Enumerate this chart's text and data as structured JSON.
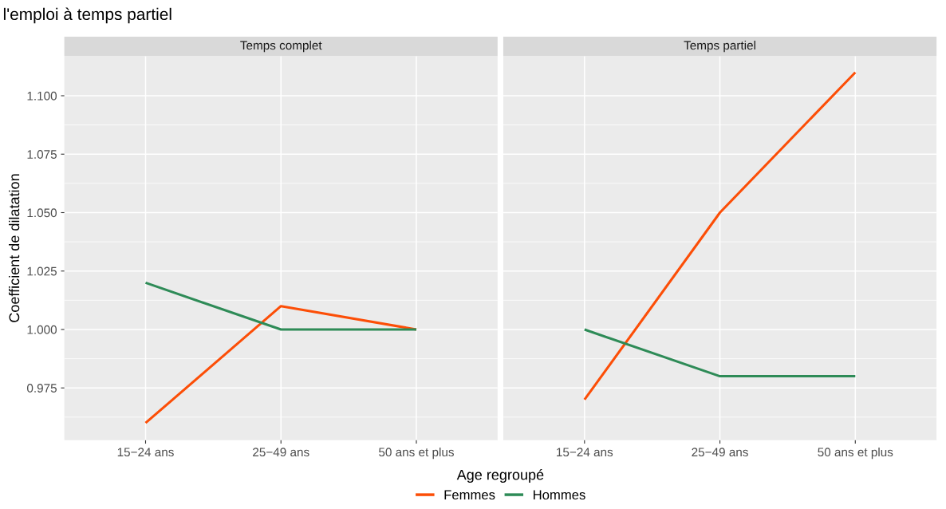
{
  "chart_data": [
    {
      "type": "line",
      "title": "Temps complet",
      "annotations": [
        "l'emploi à temps partiel"
      ],
      "xlabel": "Age regroupé",
      "ylabel": "Coefficient de dilatation",
      "categories": [
        "15−24 ans",
        "25−49 ans",
        "50 ans et plus"
      ],
      "series": [
        {
          "name": "Femmes",
          "color": "#fc4e07",
          "values": [
            0.96,
            1.01,
            1.0
          ]
        },
        {
          "name": "Hommes",
          "color": "#2e8b57",
          "values": [
            1.02,
            1.0,
            1.0
          ]
        }
      ],
      "ylim": [
        0.9526,
        1.117
      ],
      "yticks": [
        {
          "value": 0.975,
          "label": "0.975"
        },
        {
          "value": 1.0,
          "label": "1.000"
        },
        {
          "value": 1.025,
          "label": "1.025"
        },
        {
          "value": 1.05,
          "label": "1.050"
        },
        {
          "value": 1.075,
          "label": "1.075"
        },
        {
          "value": 1.1,
          "label": "1.100"
        }
      ],
      "grid": true,
      "legend": "bottom"
    },
    {
      "type": "line",
      "title": "Temps partiel",
      "categories": [
        "15−24 ans",
        "25−49 ans",
        "50 ans et plus"
      ],
      "series": [
        {
          "name": "Femmes",
          "color": "#fc4e07",
          "values": [
            0.97,
            1.05,
            1.11
          ]
        },
        {
          "name": "Hommes",
          "color": "#2e8b57",
          "values": [
            1.0,
            0.98,
            0.98
          ]
        }
      ],
      "ylim": [
        0.9526,
        1.117
      ],
      "yticks": [
        {
          "value": 0.975,
          "label": null
        },
        {
          "value": 1.0,
          "label": null
        },
        {
          "value": 1.025,
          "label": null
        },
        {
          "value": 1.05,
          "label": null
        },
        {
          "value": 1.075,
          "label": null
        },
        {
          "value": 1.1,
          "label": null
        }
      ],
      "grid": true,
      "tick_labels": "x"
    }
  ]
}
